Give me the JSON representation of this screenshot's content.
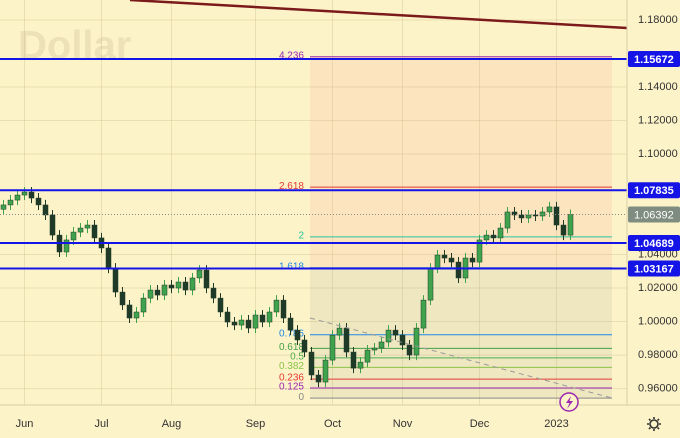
{
  "chart_data": {
    "type": "candlestick",
    "title": "Dollar",
    "categories": [
      null,
      null,
      null,
      "Jun",
      null,
      null,
      null,
      null,
      null,
      null,
      null,
      null,
      null,
      null,
      "Jul",
      null,
      null,
      null,
      null,
      null,
      null,
      null,
      null,
      null,
      "Aug",
      null,
      null,
      null,
      null,
      null,
      null,
      null,
      null,
      null,
      null,
      null,
      "Sep",
      null,
      null,
      null,
      null,
      null,
      null,
      null,
      null,
      null,
      null,
      "Oct",
      null,
      null,
      null,
      null,
      null,
      null,
      null,
      null,
      null,
      "Nov",
      null,
      null,
      null,
      null,
      null,
      null,
      null,
      null,
      null,
      null,
      "Dec",
      null,
      null,
      null,
      null,
      null,
      null,
      null,
      null,
      null,
      null,
      "2023",
      null,
      null
    ],
    "candles": [
      [
        1.067,
        1.0726,
        1.064,
        1.0696
      ],
      [
        1.0696,
        1.0755,
        1.0666,
        1.0725
      ],
      [
        1.0725,
        1.0785,
        1.0695,
        1.0755
      ],
      [
        1.0755,
        1.0803,
        1.0725,
        1.0773
      ],
      [
        1.0773,
        1.0803,
        1.0707,
        1.0737
      ],
      [
        1.0737,
        1.0767,
        1.0666,
        1.0696
      ],
      [
        1.0696,
        1.0726,
        1.0606,
        1.0636
      ],
      [
        1.0636,
        1.0666,
        1.0486,
        1.0516
      ],
      [
        1.0516,
        1.0546,
        1.0385,
        1.0415
      ],
      [
        1.0415,
        1.0517,
        1.0385,
        1.0487
      ],
      [
        1.0487,
        1.0564,
        1.0457,
        1.0534
      ],
      [
        1.0534,
        1.0588,
        1.0504,
        1.0558
      ],
      [
        1.0558,
        1.0606,
        1.0528,
        1.0576
      ],
      [
        1.0576,
        1.0606,
        1.0469,
        1.0499
      ],
      [
        1.0499,
        1.0529,
        1.0409,
        1.0439
      ],
      [
        1.0439,
        1.0469,
        1.0289,
        1.0319
      ],
      [
        1.0319,
        1.0349,
        1.0146,
        1.0176
      ],
      [
        1.0176,
        1.0206,
        1.0069,
        1.0099
      ],
      [
        1.0099,
        1.0129,
        0.9991,
        1.0021
      ],
      [
        1.0021,
        1.0087,
        0.9991,
        1.0057
      ],
      [
        1.0057,
        1.017,
        1.0027,
        1.014
      ],
      [
        1.014,
        1.0218,
        1.011,
        1.0188
      ],
      [
        1.0188,
        1.0218,
        1.0128,
        1.0158
      ],
      [
        1.0158,
        1.0248,
        1.0128,
        1.0218
      ],
      [
        1.0218,
        1.0248,
        1.017,
        1.02
      ],
      [
        1.02,
        1.0266,
        1.017,
        1.0236
      ],
      [
        1.0236,
        1.0266,
        1.0158,
        1.0188
      ],
      [
        1.0188,
        1.029,
        1.0158,
        1.026
      ],
      [
        1.026,
        1.0337,
        1.023,
        1.0307
      ],
      [
        1.0307,
        1.0337,
        1.017,
        1.02
      ],
      [
        1.02,
        1.023,
        1.011,
        1.014
      ],
      [
        1.014,
        1.017,
        1.0027,
        1.0057
      ],
      [
        1.0057,
        1.0087,
        0.9967,
        0.9997
      ],
      [
        0.9997,
        1.0027,
        0.9949,
        0.9979
      ],
      [
        0.9979,
        1.0039,
        0.9949,
        1.0009
      ],
      [
        1.0009,
        1.0039,
        0.9931,
        0.9961
      ],
      [
        0.9961,
        1.0069,
        0.9931,
        1.0039
      ],
      [
        1.0039,
        1.0069,
        0.9967,
        0.9997
      ],
      [
        0.9997,
        1.0087,
        0.9967,
        1.0057
      ],
      [
        1.0057,
        1.0158,
        1.0027,
        1.0128
      ],
      [
        1.0128,
        1.0158,
        0.9991,
        1.0021
      ],
      [
        1.0021,
        1.0051,
        0.9919,
        0.9949
      ],
      [
        0.9949,
        0.9979,
        0.986,
        0.989
      ],
      [
        0.989,
        0.992,
        0.9788,
        0.9818
      ],
      [
        0.9818,
        0.9848,
        0.9651,
        0.9681
      ],
      [
        0.9681,
        0.9711,
        0.9609,
        0.9639
      ],
      [
        0.9639,
        0.98,
        0.9609,
        0.977
      ],
      [
        0.977,
        0.9949,
        0.974,
        0.9919
      ],
      [
        0.9919,
        0.9991,
        0.9889,
        0.9961
      ],
      [
        0.9961,
        0.9991,
        0.9788,
        0.9818
      ],
      [
        0.9818,
        0.9848,
        0.9692,
        0.9722
      ],
      [
        0.9722,
        0.9788,
        0.9692,
        0.9758
      ],
      [
        0.9758,
        0.986,
        0.9728,
        0.983
      ],
      [
        0.983,
        0.9872,
        0.98,
        0.9842
      ],
      [
        0.9842,
        0.9908,
        0.9812,
        0.9878
      ],
      [
        0.9878,
        0.9979,
        0.9848,
        0.9949
      ],
      [
        0.9949,
        0.9979,
        0.9889,
        0.9919
      ],
      [
        0.9919,
        0.9949,
        0.983,
        0.986
      ],
      [
        0.986,
        0.989,
        0.977,
        0.98
      ],
      [
        0.98,
        0.9991,
        0.977,
        0.9961
      ],
      [
        0.9961,
        1.0158,
        0.9931,
        1.0128
      ],
      [
        1.0128,
        1.0349,
        1.0098,
        1.0319
      ],
      [
        1.0319,
        1.0427,
        1.0289,
        1.0397
      ],
      [
        1.0397,
        1.0427,
        1.0349,
        1.0379
      ],
      [
        1.0379,
        1.0409,
        1.0325,
        1.0355
      ],
      [
        1.0355,
        1.0385,
        1.023,
        1.026
      ],
      [
        1.026,
        1.0409,
        1.023,
        1.0379
      ],
      [
        1.0379,
        1.0409,
        1.0325,
        1.0355
      ],
      [
        1.0355,
        1.0517,
        1.0325,
        1.0487
      ],
      [
        1.0487,
        1.0546,
        1.0457,
        1.0516
      ],
      [
        1.0516,
        1.0546,
        1.0469,
        1.0499
      ],
      [
        1.0499,
        1.0588,
        1.0469,
        1.0558
      ],
      [
        1.0558,
        1.0684,
        1.0528,
        1.0654
      ],
      [
        1.0654,
        1.0684,
        1.0606,
        1.0636
      ],
      [
        1.0636,
        1.0666,
        1.0588,
        1.0618
      ],
      [
        1.0618,
        1.0666,
        1.0588,
        1.0636
      ],
      [
        1.0636,
        1.0666,
        1.06,
        1.063
      ],
      [
        1.063,
        1.0684,
        1.06,
        1.0654
      ],
      [
        1.0654,
        1.0714,
        1.0624,
        1.0684
      ],
      [
        1.0684,
        1.0714,
        1.0546,
        1.0576
      ],
      [
        1.0576,
        1.0606,
        1.0486,
        1.0516
      ],
      [
        1.0516,
        1.0669,
        1.0486,
        1.0639
      ]
    ],
    "up_color": "#3fa34d",
    "down_color": "#1f3b28",
    "ylim": [
      0.9502,
      1.1919
    ],
    "yticks": [
      {
        "value": 1.18,
        "label": "1.18000"
      },
      {
        "value": 1.14,
        "label": "1.14000"
      },
      {
        "value": 1.12,
        "label": "1.12000"
      },
      {
        "value": 1.1,
        "label": "1.10000"
      },
      {
        "value": 1.04,
        "label": "1.04000"
      },
      {
        "value": 1.02,
        "label": "1.02000"
      },
      {
        "value": 1.0,
        "label": "1.00000"
      },
      {
        "value": 0.98,
        "label": "0.98000"
      },
      {
        "value": 0.96,
        "label": "0.96000"
      }
    ],
    "grid": true,
    "horizontal_lines": [
      {
        "value": 1.15672,
        "color": "#1414e6"
      },
      {
        "value": 1.07835,
        "color": "#1414e6"
      },
      {
        "value": 1.04689,
        "color": "#1414e6"
      },
      {
        "value": 1.03167,
        "color": "#1414e6"
      }
    ],
    "last_price": 1.06392,
    "last_price_color": "#7f8c80",
    "fibonacci": {
      "low": 0.9543,
      "high": 1.0024,
      "levels": [
        4.236,
        2.618,
        2,
        1.618,
        0.786,
        0.618,
        0.5,
        0.382,
        0.236,
        0.125,
        0
      ],
      "colors": [
        "#9c27b0",
        "#e53935",
        "#26c6a0",
        "#1e88e5",
        "#1e88e5",
        "#43a047",
        "#4caf50",
        "#8bc34a",
        "#e53935",
        "#9c27b0",
        "#8a8a8a"
      ]
    }
  }
}
